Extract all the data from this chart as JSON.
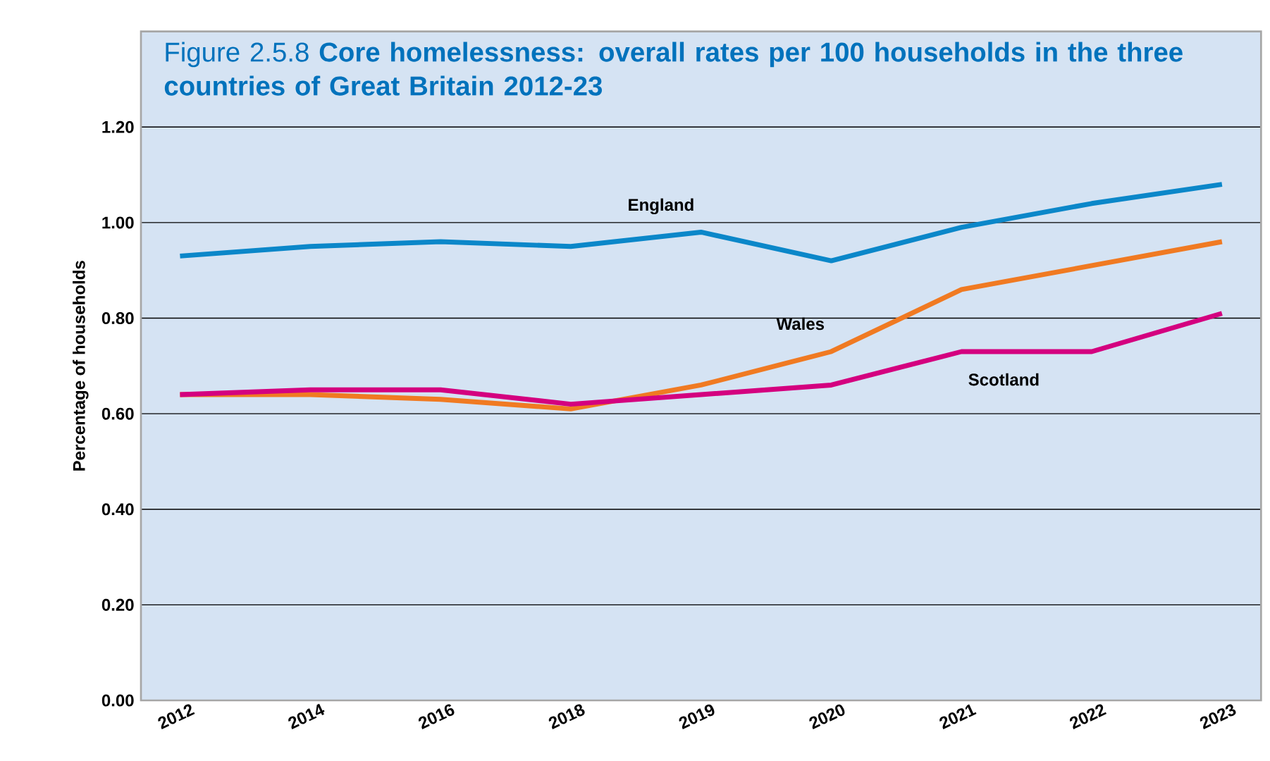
{
  "chart_data": {
    "type": "line",
    "title": "Figure 2.5.8 **Core homelessness: overall rates per 100 households in the three countries of Great Britain 2012-23**",
    "ylabel": "Percentage of households",
    "categories": [
      "2012",
      "2014",
      "2016",
      "2018",
      "2019",
      "2020",
      "2021",
      "2022",
      "2023"
    ],
    "series": [
      {
        "name": "England",
        "color": "#0b87c9",
        "values": [
          0.93,
          0.95,
          0.96,
          0.95,
          0.98,
          0.92,
          0.99,
          1.04,
          1.08
        ]
      },
      {
        "name": "Wales",
        "color": "#f07a22",
        "values": [
          0.64,
          0.64,
          0.63,
          0.61,
          0.66,
          0.73,
          0.86,
          0.91,
          0.96
        ]
      },
      {
        "name": "Scotland",
        "color": "#d4007f",
        "values": [
          0.64,
          0.65,
          0.65,
          0.62,
          0.64,
          0.66,
          0.73,
          0.73,
          0.81
        ]
      }
    ],
    "ylim": [
      0,
      1.4
    ],
    "yticks": [
      {
        "value": 0,
        "label": "0.00"
      },
      {
        "value": 0.2,
        "label": "0.20"
      },
      {
        "value": 0.4,
        "label": "0.40"
      },
      {
        "value": 0.6,
        "label": "0.60"
      },
      {
        "value": 0.8,
        "label": "0.80"
      },
      {
        "value": 1.0,
        "label": "1.00"
      },
      {
        "value": 1.2,
        "label": "1.20"
      }
    ],
    "grid": "y",
    "legend": false,
    "marker": "none",
    "line_style": "solid"
  }
}
